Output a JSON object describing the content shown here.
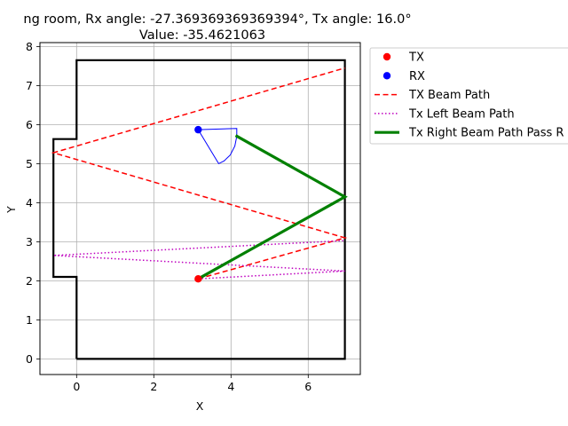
{
  "chart_data": {
    "type": "line",
    "title_line1": "ng room, Rx angle: -27.369369369369394°, Tx angle: 16.0°",
    "title_line2": "Value: -35.4621063",
    "xlabel": "X",
    "ylabel": "Y",
    "xlim": [
      -0.95,
      7.35
    ],
    "ylim": [
      -0.4,
      8.1
    ],
    "xticks": [
      0,
      2,
      4,
      6
    ],
    "yticks": [
      0,
      1,
      2,
      3,
      4,
      5,
      6,
      7,
      8
    ],
    "grid": true,
    "legend_position": "outside-right-top",
    "room_outline": {
      "color": "#000000",
      "x": [
        0,
        6.95,
        6.95,
        0,
        0,
        -0.6,
        -0.6,
        0,
        0
      ],
      "y": [
        0,
        0,
        7.65,
        7.65,
        5.63,
        5.63,
        2.1,
        2.1,
        0
      ]
    },
    "rx_fov": {
      "color": "#0000ff",
      "x": [
        3.15,
        3.68,
        3.82,
        3.98,
        4.1,
        4.15,
        4.15,
        3.15
      ],
      "y": [
        5.87,
        5.0,
        5.07,
        5.22,
        5.45,
        5.7,
        5.9,
        5.87
      ]
    },
    "series": [
      {
        "name": "TX",
        "style": "marker",
        "color": "#ff0000",
        "x": [
          3.15
        ],
        "y": [
          2.05
        ]
      },
      {
        "name": "RX",
        "style": "marker",
        "color": "#0000ff",
        "x": [
          3.15
        ],
        "y": [
          5.87
        ]
      },
      {
        "name": "TX Beam Path",
        "style": "dashed",
        "color": "#ff0000",
        "x": [
          3.15,
          6.95,
          -0.6,
          6.95
        ],
        "y": [
          2.05,
          3.1,
          5.28,
          7.45
        ]
      },
      {
        "name": "Tx Left Beam Path",
        "style": "dotted",
        "color": "#bf00bf",
        "x": [
          3.15,
          6.95,
          -0.6,
          6.95
        ],
        "y": [
          2.05,
          2.25,
          2.65,
          3.03
        ]
      },
      {
        "name": "Tx Right Beam Path Pass R",
        "style": "solid",
        "color": "#008000",
        "x": [
          3.15,
          6.95,
          4.12
        ],
        "y": [
          2.05,
          4.15,
          5.72
        ]
      }
    ]
  }
}
